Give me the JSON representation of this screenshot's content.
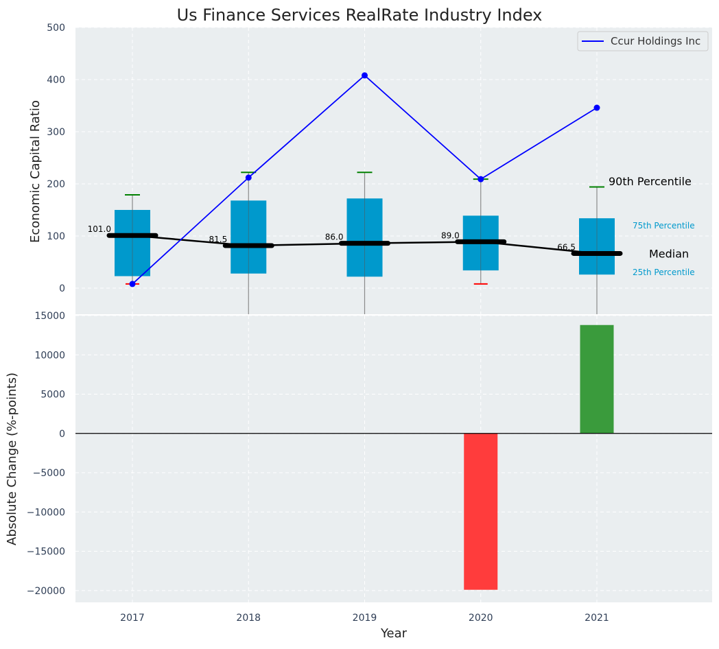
{
  "chart_data": [
    {
      "type": "box_line",
      "title": "Us Finance Services RealRate Industry Index",
      "ylabel": "Economic Capital Ratio",
      "xlabel": "",
      "ylim": [
        -50,
        500
      ],
      "yticks": [
        0,
        100,
        200,
        300,
        400,
        500
      ],
      "categories": [
        "2017",
        "2018",
        "2019",
        "2020",
        "2021"
      ],
      "grid": true,
      "boxes": [
        {
          "year": "2017",
          "p10": 8,
          "p25": 23,
          "median": 101.0,
          "p75": 150,
          "p90": 179,
          "median_label": "101.0"
        },
        {
          "year": "2018",
          "p10": -50,
          "p25": 28,
          "median": 81.5,
          "p75": 168,
          "p90": 222,
          "median_label": "81.5"
        },
        {
          "year": "2019",
          "p10": -50,
          "p25": 22,
          "median": 86.0,
          "p75": 172,
          "p90": 222,
          "median_label": "86.0"
        },
        {
          "year": "2020",
          "p10": 8,
          "p25": 34,
          "median": 89.0,
          "p75": 139,
          "p90": 209,
          "median_label": "89.0"
        },
        {
          "year": "2021",
          "p10": -50,
          "p25": 26,
          "median": 66.5,
          "p75": 134,
          "p90": 194,
          "median_label": "66.5"
        }
      ],
      "series": [
        {
          "name": "Ccur Holdings Inc",
          "values": [
            8,
            212,
            408,
            209,
            346
          ],
          "color": "#0000ff"
        }
      ],
      "legend": {
        "position": "top-right",
        "entries": [
          "Ccur Holdings Inc"
        ]
      },
      "annotations": {
        "p90": "90th Percentile",
        "p75": "75th Percentile",
        "median": "Median",
        "p25": "25th Percentile"
      },
      "colors": {
        "box": "#0099cc",
        "median_line": "#000000",
        "p90_cap": "#008000",
        "p10_cap": "#ff0000",
        "background": "#eaeef0"
      }
    },
    {
      "type": "bar",
      "title": "",
      "ylabel": "Absolute Change (%-points)",
      "xlabel": "Year",
      "ylim": [
        -21500,
        15000
      ],
      "yticks": [
        -20000,
        -15000,
        -10000,
        -5000,
        0,
        5000,
        10000,
        15000
      ],
      "ytick_labels": [
        "−20000",
        "−15000",
        "−10000",
        "−5000",
        "0",
        "5000",
        "10000",
        "15000"
      ],
      "categories": [
        "2017",
        "2018",
        "2019",
        "2020",
        "2021"
      ],
      "values": [
        0,
        0,
        0,
        -19900,
        13800
      ],
      "colors": {
        "positive": "#3a9b3c",
        "negative": "#ff3c3c"
      },
      "grid": true
    }
  ]
}
